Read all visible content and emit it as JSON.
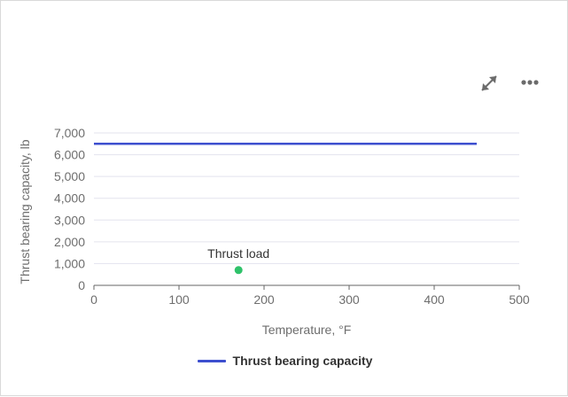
{
  "colors": {
    "series": "#3d4fcf",
    "point": "#2fc26a",
    "grid": "#e3e3ee",
    "axis": "#666666",
    "icon": "#6b6b6b"
  },
  "toolbar": {
    "expand_icon": "expand-arrows-icon",
    "more_icon": "more-horizontal-icon"
  },
  "chart_data": {
    "type": "line",
    "title": "",
    "xlabel": "Temperature, °F",
    "ylabel": "Thrust bearing capacity, lb",
    "xlim": [
      0,
      500
    ],
    "ylim": [
      0,
      7000
    ],
    "x_ticks": [
      0,
      100,
      200,
      300,
      400,
      500
    ],
    "x_tick_labels": [
      "0",
      "100",
      "200",
      "300",
      "400",
      "500"
    ],
    "y_ticks": [
      0,
      1000,
      2000,
      3000,
      4000,
      5000,
      6000,
      7000
    ],
    "y_tick_labels": [
      "0",
      "1,000",
      "2,000",
      "3,000",
      "4,000",
      "5,000",
      "6,000",
      "7,000"
    ],
    "grid": true,
    "series": [
      {
        "name": "Thrust bearing capacity",
        "x": [
          0,
          450
        ],
        "values": [
          6500,
          6500
        ],
        "color": "#3d4fcf"
      }
    ],
    "points": [
      {
        "label": "Thrust load",
        "x": 170,
        "y": 700,
        "color": "#2fc26a"
      }
    ],
    "legend": {
      "position": "bottom-center",
      "entries": [
        "Thrust bearing capacity"
      ]
    }
  }
}
